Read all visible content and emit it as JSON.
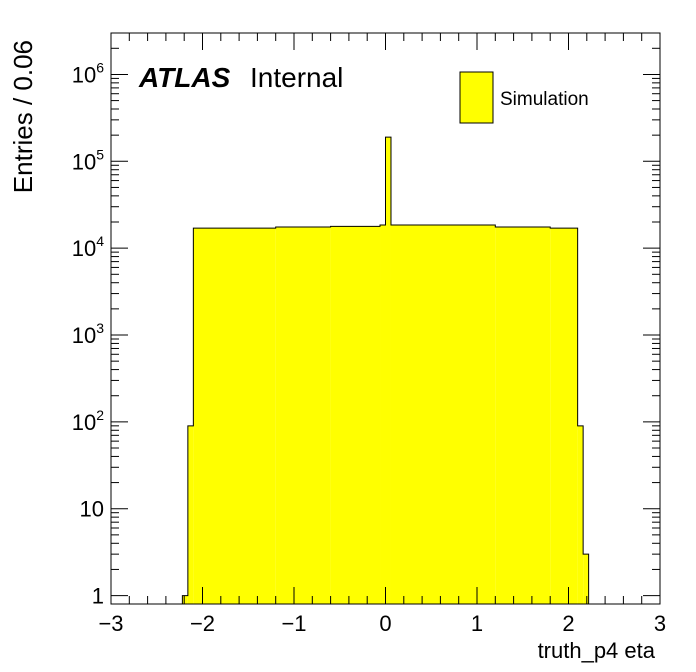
{
  "chart_data": {
    "type": "bar",
    "histogram": true,
    "title": "",
    "xlabel": "truth_p4 eta",
    "ylabel": "Entries / 0.06",
    "xlim": [
      -3,
      3
    ],
    "ylim": [
      0.8,
      3000000
    ],
    "yscale": "log",
    "grid": false,
    "legend_position": "top-right",
    "bin_width": 0.06,
    "x_ticks": [
      -3,
      -2,
      -1,
      0,
      1,
      2,
      3
    ],
    "x_tick_labels": [
      "−3",
      "−2",
      "−1",
      "0",
      "1",
      "2",
      "3"
    ],
    "y_ticks": [
      {
        "value": 1,
        "base": "1",
        "exp": ""
      },
      {
        "value": 10,
        "base": "10",
        "exp": ""
      },
      {
        "value": 100,
        "base": "10",
        "exp": "2"
      },
      {
        "value": 1000,
        "base": "10",
        "exp": "3"
      },
      {
        "value": 10000,
        "base": "10",
        "exp": "4"
      },
      {
        "value": 100000,
        "base": "10",
        "exp": "5"
      },
      {
        "value": 1000000,
        "base": "10",
        "exp": "6"
      }
    ],
    "series": [
      {
        "name": "Simulation",
        "color": "#ffff00",
        "edge_color": "#000000",
        "bins": [
          {
            "x": -2.22,
            "y": 1
          },
          {
            "x": -2.16,
            "y": 90
          },
          {
            "x": -2.1,
            "y": 17000
          },
          {
            "x": -1.2,
            "y": 17500
          },
          {
            "x": -0.6,
            "y": 17800
          },
          {
            "x": -0.06,
            "y": 18500
          },
          {
            "x": 0.0,
            "y": 190000
          },
          {
            "x": 0.06,
            "y": 18500
          },
          {
            "x": 1.2,
            "y": 17500
          },
          {
            "x": 1.8,
            "y": 17000
          },
          {
            "x": 2.1,
            "y": 90
          },
          {
            "x": 2.16,
            "y": 3
          },
          {
            "x": 2.22,
            "y": 0
          }
        ]
      }
    ]
  },
  "annotations": {
    "atlas_label": "ATLAS",
    "atlas_sub": "Internal"
  }
}
